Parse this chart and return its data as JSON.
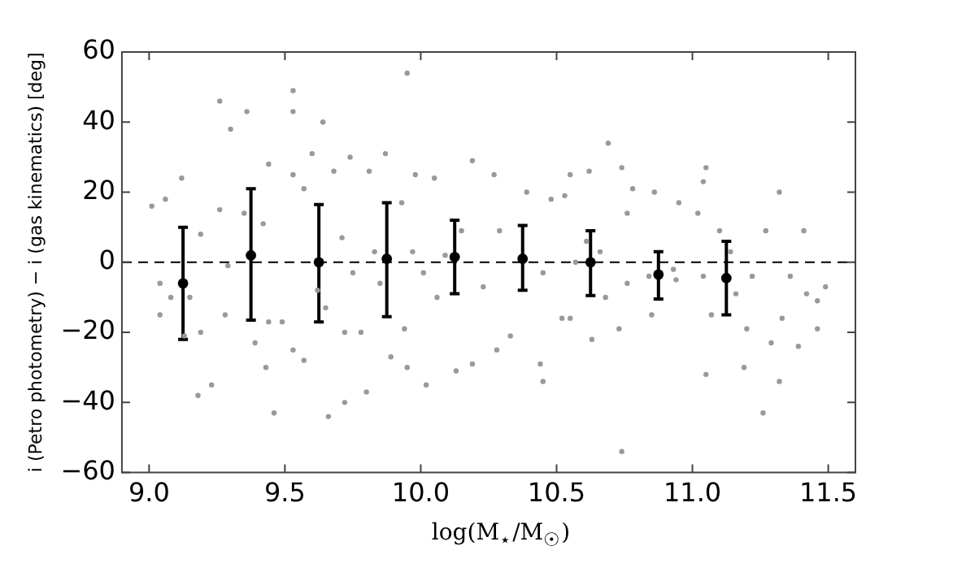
{
  "chart_data": {
    "type": "scatter",
    "xlabel": "log(M$_{⋆}$/M$_{☉}$)",
    "ylabel": "i (Petro photometry) − i (gas kinematics) [deg]",
    "xlim": [
      8.9,
      11.6
    ],
    "xticks": [
      {
        "value": 9,
        "label": "9.0"
      },
      {
        "value": 9.5,
        "label": "9.5"
      },
      {
        "value": 10,
        "label": "10.0"
      },
      {
        "value": 10.5,
        "label": "10.5"
      },
      {
        "value": 11,
        "label": "11.0"
      },
      {
        "value": 11.5,
        "label": "11.5"
      }
    ],
    "ylim": [
      -60,
      60
    ],
    "yticks": [
      {
        "value": -60,
        "label": "−60"
      },
      {
        "value": -40,
        "label": "−40"
      },
      {
        "value": -20,
        "label": "−20"
      },
      0,
      20,
      40,
      60
    ],
    "grid": false,
    "marker": "circle",
    "ref_lines": [
      {
        "axis": "y",
        "value": 0,
        "color": "#000000",
        "line_style": "dashed"
      }
    ],
    "series": [
      {
        "color": "#999999",
        "x": [
          9.01,
          9.06,
          9.04,
          9.04,
          9.08,
          9.12,
          9.13,
          9.15,
          9.18,
          9.19,
          9.19,
          9.23,
          9.26,
          9.3,
          9.26,
          9.28,
          9.29,
          9.36,
          9.35,
          9.39,
          9.42,
          9.44,
          9.44,
          9.43,
          9.46,
          9.53,
          9.53,
          9.53,
          9.49,
          9.53,
          9.57,
          9.57,
          9.6,
          9.64,
          9.62,
          9.65,
          9.66,
          9.68,
          9.72,
          9.72,
          9.74,
          9.71,
          9.78,
          9.8,
          9.81,
          9.83,
          9.87,
          9.89,
          9.93,
          9.95,
          9.94,
          9.95,
          9.98,
          10.01,
          10.02,
          10.05,
          10.06,
          10.13,
          10.19,
          10.19,
          10.15,
          10.23,
          10.27,
          10.28,
          10.33,
          10.29,
          10.09,
          9.97,
          9.85,
          9.75,
          10.39,
          10.44,
          10.45,
          10.48,
          10.53,
          10.55,
          10.52,
          10.55,
          10.62,
          10.63,
          10.69,
          10.74,
          10.74,
          10.73,
          10.78,
          10.76,
          10.86,
          10.85,
          10.93,
          10.95,
          11.02,
          11.04,
          11.05,
          11.05,
          11.07,
          11.1,
          11.16,
          11.19,
          11.2,
          11.22,
          11.26,
          11.27,
          11.29,
          11.32,
          11.32,
          11.33,
          11.36,
          11.39,
          11.41,
          11.46,
          11.46,
          11.49,
          11.42,
          10.45,
          10.57,
          10.66,
          10.76,
          10.84,
          10.94,
          11.04,
          11.14,
          10.68,
          10.61
        ],
        "values": [
          16,
          18,
          -6,
          -15,
          -10,
          24,
          -21,
          -10,
          -38,
          -20,
          8,
          -35,
          46,
          38,
          15,
          -15,
          -1,
          43,
          14,
          -23,
          11,
          28,
          -17,
          -30,
          -43,
          49,
          43,
          25,
          -17,
          -25,
          -28,
          21,
          31,
          40,
          -8,
          -13,
          -44,
          26,
          -20,
          -40,
          30,
          7,
          -20,
          -37,
          26,
          3,
          31,
          -27,
          17,
          54,
          -19,
          -30,
          25,
          -3,
          -35,
          24,
          -10,
          -31,
          29,
          -29,
          9,
          -7,
          25,
          -25,
          -21,
          9,
          2,
          3,
          -6,
          -3,
          20,
          -29,
          -34,
          18,
          19,
          25,
          -16,
          -16,
          26,
          -22,
          34,
          27,
          -54,
          -19,
          21,
          14,
          20,
          -15,
          -2,
          17,
          14,
          23,
          27,
          -32,
          -15,
          9,
          -9,
          -30,
          -19,
          -4,
          -43,
          9,
          -23,
          20,
          -34,
          -16,
          -4,
          -24,
          9,
          -11,
          -19,
          -7,
          -9,
          -3,
          0,
          3,
          -6,
          -4,
          -5,
          -4,
          3,
          -10,
          6
        ]
      },
      {
        "color": "#000000",
        "x": [
          9.125,
          9.375,
          9.625,
          9.875,
          10.125,
          10.375,
          10.625,
          10.875,
          11.125
        ],
        "values": [
          -6,
          2,
          0,
          1,
          1.5,
          1,
          0,
          -3.5,
          -4.5
        ],
        "errors": [
          [
            -22,
            10
          ],
          [
            -16.5,
            21
          ],
          [
            -17,
            16.5
          ],
          [
            -15.5,
            17
          ],
          [
            -9,
            12
          ],
          [
            -8,
            10.5
          ],
          [
            -9.5,
            9
          ],
          [
            -10.5,
            3
          ],
          [
            -15,
            6
          ]
        ]
      }
    ]
  }
}
